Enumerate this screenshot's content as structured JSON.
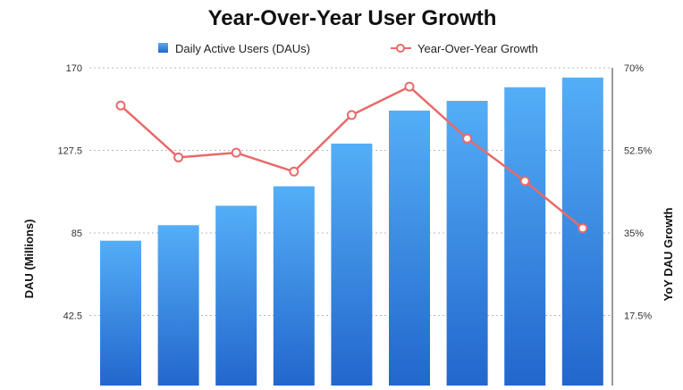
{
  "chart_data": {
    "type": "bar",
    "title": "Year-Over-Year User Growth",
    "xlabel": "",
    "ylabel": "DAU (Millions)",
    "y2label": "YoY DAU Growth",
    "ylim": [
      0,
      170
    ],
    "y2lim": [
      0,
      70
    ],
    "yticks": [
      "42.5",
      "85",
      "127.5",
      "170"
    ],
    "y2ticks": [
      "17.5%",
      "35%",
      "52.5%",
      "70%"
    ],
    "grid": true,
    "legend_position": "top",
    "series": [
      {
        "name": "Daily Active Users (DAUs)",
        "type": "bar",
        "axis": "left",
        "color": "#2f82e0",
        "values": [
          81,
          89,
          99,
          109,
          131,
          148,
          153,
          160,
          165
        ]
      },
      {
        "name": "Year-Over-Year Growth",
        "type": "line",
        "axis": "right",
        "color": "#e86a6a",
        "values": [
          62,
          51,
          52,
          48,
          60,
          66,
          55,
          46,
          36
        ]
      }
    ]
  }
}
